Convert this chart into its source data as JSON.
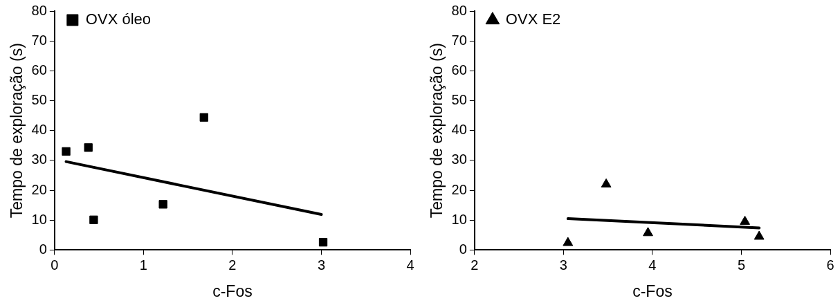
{
  "chart_data": [
    {
      "type": "scatter",
      "xlabel": "c-Fos",
      "ylabel": "Tempo de exploração (s)",
      "xlim": [
        0,
        4
      ],
      "xticks": [
        0,
        1,
        2,
        3,
        4
      ],
      "ylim": [
        0,
        80
      ],
      "yticks": [
        0,
        10,
        20,
        30,
        40,
        50,
        60,
        70,
        80
      ],
      "grid": false,
      "legend": "top left",
      "series": [
        {
          "name": "OVX óleo",
          "color": "#000000",
          "marker": "square",
          "x": [
            0.13,
            0.38,
            0.44,
            1.22,
            1.68,
            3.02
          ],
          "values": [
            33,
            34.3,
            10.1,
            15.3,
            44.4,
            2.6
          ]
        },
        {
          "type": "line",
          "color": "#000000",
          "x": [
            0.13,
            3.0
          ],
          "values": [
            29.6,
            11.9
          ]
        }
      ]
    },
    {
      "type": "scatter",
      "xlabel": "c-Fos",
      "ylabel": "Tempo de exploração (s)",
      "xlim": [
        2,
        6
      ],
      "xticks": [
        2,
        3,
        4,
        5,
        6
      ],
      "ylim": [
        0,
        80
      ],
      "yticks": [
        0,
        10,
        20,
        30,
        40,
        50,
        60,
        70,
        80
      ],
      "grid": false,
      "legend": "top left",
      "series": [
        {
          "name": "OVX E2",
          "color": "#000000",
          "marker": "triangle",
          "x": [
            3.05,
            3.48,
            3.95,
            5.04,
            5.2
          ],
          "values": [
            2.4,
            22,
            5.7,
            9.5,
            4.5
          ]
        },
        {
          "type": "line",
          "color": "#000000",
          "x": [
            3.05,
            5.2
          ],
          "values": [
            10.5,
            7.4
          ]
        }
      ]
    }
  ]
}
